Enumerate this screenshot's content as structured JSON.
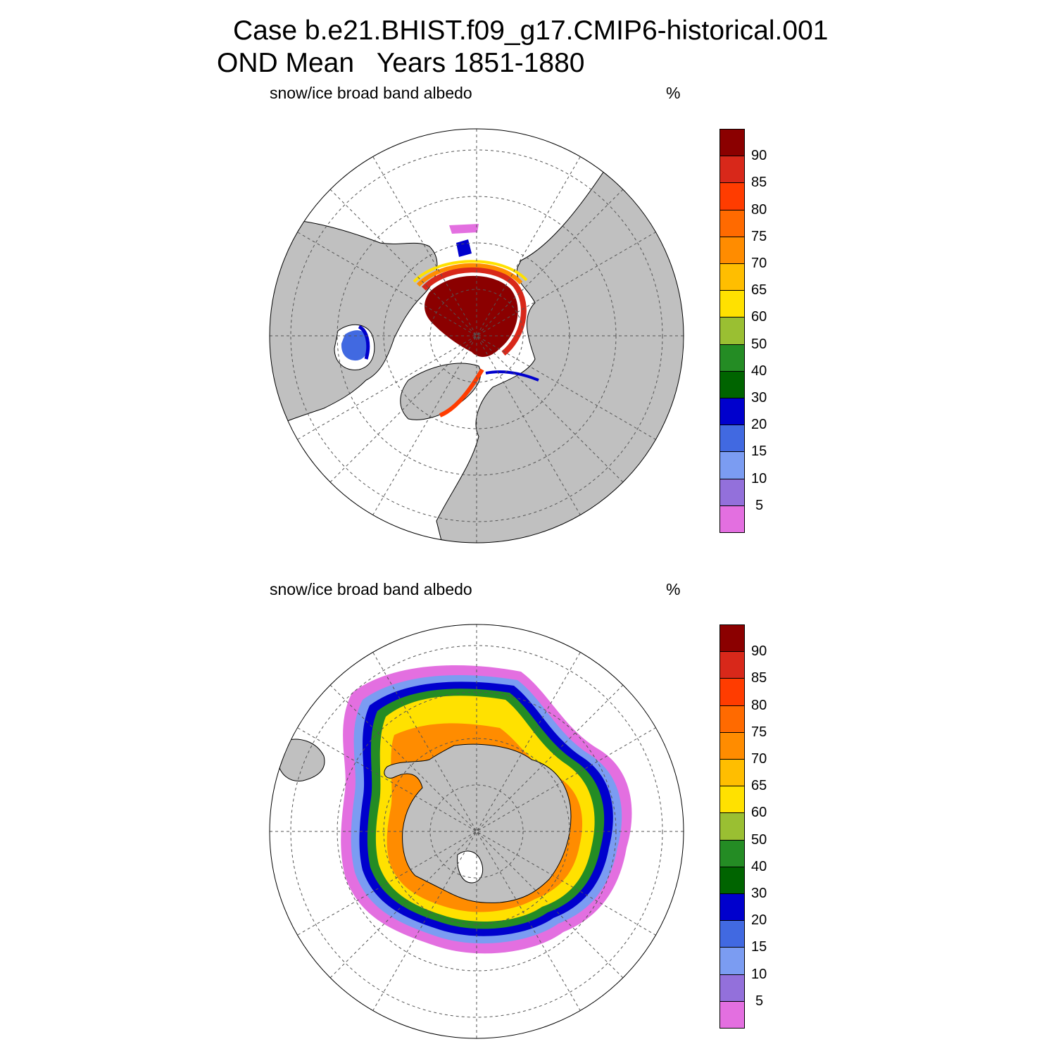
{
  "title": {
    "line1": "Case b.e21.BHIST.f09_g17.CMIP6-historical.001",
    "line2": "OND Mean   Years 1851-1880"
  },
  "panels": [
    {
      "hemisphere": "north",
      "variable": "snow/ice broad band albedo",
      "units": "%"
    },
    {
      "hemisphere": "south",
      "variable": "snow/ice broad band albedo",
      "units": "%"
    }
  ],
  "colorbar": {
    "levels": [
      "90",
      "85",
      "80",
      "75",
      "70",
      "65",
      "60",
      "50",
      "40",
      "30",
      "20",
      "15",
      "10",
      "5"
    ],
    "colors": [
      "#8b0000",
      "#d8281a",
      "#ff3c00",
      "#ff6a00",
      "#ff8c00",
      "#ffbe00",
      "#ffe100",
      "#9abf32",
      "#248c24",
      "#006400",
      "#0000cd",
      "#4169e1",
      "#7b9cf2",
      "#9370db",
      "#e36fe0"
    ]
  },
  "map_style": {
    "land": "#c0c0c0",
    "ocean": "#ffffff",
    "grid": "#555555",
    "coast": "#000000"
  }
}
